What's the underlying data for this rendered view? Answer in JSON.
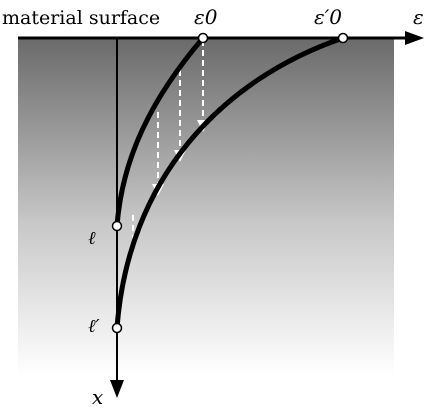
{
  "labels": {
    "surface": "material surface",
    "eps0": "ε0",
    "eps0_prime": "ε′0",
    "eps_axis": "ε",
    "ell": "ℓ",
    "ell_prime": "ℓ′",
    "x_axis": "x"
  },
  "colors": {
    "gradient_top": "#6a6a6a",
    "gradient_bottom": "#ffffff",
    "curve": "#000000",
    "arrow_dashed": "#ffffff"
  }
}
